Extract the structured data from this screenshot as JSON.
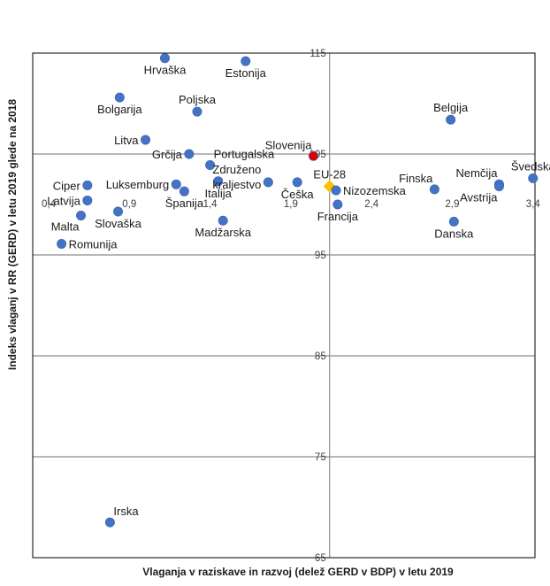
{
  "chart_data": {
    "type": "scatter",
    "xlabel": "Vlaganja v raziskave in razvoj (delež GERD v BDP) v letu 2019",
    "ylabel": "Indeks vlaganj v RR (GERD) v letu 2019 glede na 2018",
    "xlim": [
      0.4,
      3.4
    ],
    "ylim": [
      65,
      115
    ],
    "x_ticks": [
      "0,4",
      "0,9",
      "1,4",
      "1,9",
      "2,4",
      "2,9",
      "3,4"
    ],
    "y_ticks": [
      "65",
      "75",
      "85",
      "95",
      "105",
      "115"
    ],
    "x_tick_values": [
      0.4,
      0.9,
      1.4,
      1.9,
      2.4,
      2.9,
      3.4
    ],
    "y_tick_values": [
      65,
      75,
      85,
      95,
      105,
      115
    ],
    "crosshair": {
      "x": 2.14,
      "y": 105
    },
    "grid": "horizontal",
    "colors": {
      "point": "#4472c4",
      "slovenia": "#e00000",
      "eu": "#ffc000",
      "grid": "#8c8c8c",
      "frame": "#000000"
    },
    "points": [
      {
        "name": "Hrvaška",
        "x": 1.12,
        "y": 114.5,
        "label_pos": "below"
      },
      {
        "name": "Estonija",
        "x": 1.62,
        "y": 114.2,
        "label_pos": "below"
      },
      {
        "name": "Bolgarija",
        "x": 0.84,
        "y": 110.6,
        "label_pos": "below"
      },
      {
        "name": "Poljska",
        "x": 1.32,
        "y": 109.2,
        "label_pos": "above"
      },
      {
        "name": "Belgija",
        "x": 2.89,
        "y": 108.4,
        "label_pos": "above"
      },
      {
        "name": "Litva",
        "x": 1.0,
        "y": 106.4,
        "label_pos": "left"
      },
      {
        "name": "Grčija",
        "x": 1.27,
        "y": 105.0,
        "label_pos": "left"
      },
      {
        "name": "Slovenija",
        "x": 2.04,
        "y": 104.8,
        "color": "slovenia",
        "label_pos": "above-left"
      },
      {
        "name": "Portugalska",
        "x": 1.4,
        "y": 103.9,
        "label_pos": "above-right"
      },
      {
        "name": "Švedska",
        "x": 3.4,
        "y": 102.6,
        "label_pos": "above"
      },
      {
        "name": "Združeno kraljestvo",
        "x": 1.76,
        "y": 102.2,
        "label_pos": "left-2line"
      },
      {
        "name": "Italija",
        "x": 1.45,
        "y": 102.3,
        "label_pos": "below"
      },
      {
        "name": "Nemčija",
        "x": 3.19,
        "y": 102.0,
        "label_pos": "above-left"
      },
      {
        "name": "Avstrija",
        "x": 3.19,
        "y": 101.8,
        "label_pos": "below-left"
      },
      {
        "name": "Luksemburg",
        "x": 1.19,
        "y": 102.0,
        "label_pos": "left"
      },
      {
        "name": "Ciper",
        "x": 0.64,
        "y": 101.9,
        "label_pos": "left"
      },
      {
        "name": "Češka",
        "x": 1.94,
        "y": 102.2,
        "label_pos": "below"
      },
      {
        "name": "EU-28",
        "x": 2.14,
        "y": 101.8,
        "color": "eu",
        "label_pos": "above"
      },
      {
        "name": "Finska",
        "x": 2.79,
        "y": 101.5,
        "label_pos": "above-left"
      },
      {
        "name": "Nizozemska",
        "x": 2.18,
        "y": 101.4,
        "label_pos": "right"
      },
      {
        "name": "Španija",
        "x": 1.24,
        "y": 101.3,
        "label_pos": "below"
      },
      {
        "name": "Latvija",
        "x": 0.64,
        "y": 100.4,
        "label_pos": "left"
      },
      {
        "name": "Francija",
        "x": 2.19,
        "y": 100.0,
        "label_pos": "below"
      },
      {
        "name": "Slovaška",
        "x": 0.83,
        "y": 99.3,
        "label_pos": "below"
      },
      {
        "name": "Malta",
        "x": 0.6,
        "y": 98.9,
        "label_pos": "below-left"
      },
      {
        "name": "Madžarska",
        "x": 1.48,
        "y": 98.4,
        "label_pos": "below"
      },
      {
        "name": "Danska",
        "x": 2.91,
        "y": 98.3,
        "label_pos": "below"
      },
      {
        "name": "Romunija",
        "x": 0.48,
        "y": 96.1,
        "label_pos": "right"
      },
      {
        "name": "Irska",
        "x": 0.78,
        "y": 68.5,
        "label_pos": "above-right"
      }
    ]
  }
}
